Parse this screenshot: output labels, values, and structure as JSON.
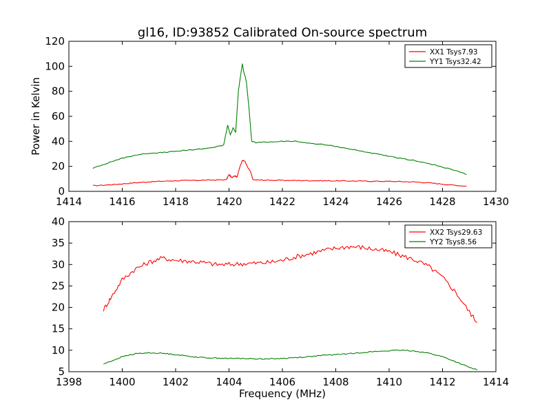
{
  "figure": {
    "title": "gl16, ID:93852 Calibrated On-source spectrum",
    "xlabel": "Frequency (MHz)"
  },
  "chart_data": [
    {
      "type": "line",
      "ylabel": "Power in Kelvin",
      "xlim": [
        1414,
        1430
      ],
      "ylim": [
        0,
        120
      ],
      "xticks": [
        "1414",
        "1416",
        "1418",
        "1420",
        "1422",
        "1424",
        "1426",
        "1428",
        "1430"
      ],
      "yticks": [
        "0",
        "20",
        "40",
        "60",
        "80",
        "100",
        "120"
      ],
      "grid": false,
      "legend_position": "top-right",
      "series": [
        {
          "name": "XX1 Tsys7.93",
          "color": "#ff0000",
          "x": [
            1414.9,
            1415.5,
            1416.0,
            1416.5,
            1417.0,
            1417.5,
            1418.0,
            1418.5,
            1419.0,
            1419.5,
            1419.9,
            1420.0,
            1420.1,
            1420.2,
            1420.3,
            1420.4,
            1420.5,
            1420.6,
            1420.7,
            1420.8,
            1420.9,
            1421.2,
            1421.6,
            1422.0,
            1422.5,
            1423.0,
            1423.5,
            1424.0,
            1424.5,
            1425.0,
            1425.5,
            1426.0,
            1426.5,
            1427.0,
            1427.5,
            1428.0,
            1428.5,
            1428.9
          ],
          "values": [
            4.5,
            5.2,
            6.0,
            6.9,
            7.6,
            8.1,
            8.5,
            8.7,
            8.9,
            9.1,
            9.3,
            13.5,
            11.0,
            12.5,
            11.5,
            19.0,
            25.0,
            24.0,
            19.0,
            16.0,
            9.2,
            9.0,
            8.9,
            8.8,
            8.7,
            8.6,
            8.5,
            8.4,
            8.3,
            8.2,
            8.1,
            8.0,
            7.8,
            7.5,
            6.8,
            5.8,
            4.8,
            4.2
          ]
        },
        {
          "name": "YY1 Tsys32.42",
          "color": "#008000",
          "x": [
            1414.9,
            1415.3,
            1415.7,
            1416.0,
            1416.5,
            1417.0,
            1417.5,
            1418.0,
            1418.5,
            1419.0,
            1419.5,
            1419.8,
            1419.95,
            1420.05,
            1420.15,
            1420.25,
            1420.35,
            1420.45,
            1420.5,
            1420.55,
            1420.65,
            1420.75,
            1420.85,
            1421.0,
            1421.5,
            1422.0,
            1422.5,
            1423.0,
            1423.5,
            1424.0,
            1424.5,
            1425.0,
            1425.5,
            1426.0,
            1426.5,
            1427.0,
            1427.5,
            1428.0,
            1428.5,
            1428.9
          ],
          "values": [
            18.5,
            21.5,
            24.5,
            26.5,
            29.0,
            30.5,
            31.0,
            32.0,
            33.0,
            34.0,
            35.5,
            37.0,
            53.0,
            45.0,
            51.0,
            47.0,
            80.0,
            95.0,
            102.0,
            96.0,
            88.0,
            66.0,
            40.0,
            39.0,
            39.5,
            40.0,
            40.0,
            38.5,
            37.5,
            36.0,
            34.0,
            32.0,
            30.0,
            28.0,
            26.0,
            24.5,
            22.0,
            19.5,
            16.5,
            13.5
          ]
        }
      ]
    },
    {
      "type": "line",
      "ylabel": "",
      "xlim": [
        1398,
        1414
      ],
      "ylim": [
        5,
        40
      ],
      "xticks": [
        "1398",
        "1400",
        "1402",
        "1404",
        "1406",
        "1408",
        "1410",
        "1412",
        "1414"
      ],
      "yticks": [
        "5",
        "10",
        "15",
        "20",
        "25",
        "30",
        "35",
        "40"
      ],
      "grid": false,
      "legend_position": "top-right",
      "series": [
        {
          "name": "XX2 Tsys29.63",
          "color": "#ff0000",
          "x": [
            1399.3,
            1399.6,
            1400.0,
            1400.5,
            1401.0,
            1401.5,
            1402.0,
            1402.5,
            1403.0,
            1403.5,
            1404.0,
            1404.5,
            1405.0,
            1405.5,
            1406.0,
            1406.5,
            1407.0,
            1407.5,
            1408.0,
            1408.5,
            1409.0,
            1409.5,
            1410.0,
            1410.5,
            1411.0,
            1411.5,
            1412.0,
            1412.5,
            1413.0,
            1413.3
          ],
          "values": [
            19.5,
            22.5,
            26.5,
            29.0,
            30.5,
            31.5,
            31.0,
            30.8,
            30.5,
            30.0,
            30.0,
            30.2,
            30.3,
            30.5,
            31.0,
            31.8,
            32.5,
            33.2,
            33.8,
            34.2,
            34.0,
            33.5,
            33.0,
            32.0,
            31.0,
            29.5,
            27.0,
            23.5,
            19.0,
            16.5
          ]
        },
        {
          "name": "YY2 Tsys8.56",
          "color": "#008000",
          "x": [
            1399.3,
            1399.6,
            1400.0,
            1400.5,
            1401.0,
            1401.5,
            1402.0,
            1402.5,
            1403.0,
            1403.5,
            1404.0,
            1404.5,
            1405.0,
            1405.5,
            1406.0,
            1406.5,
            1407.0,
            1407.5,
            1408.0,
            1408.5,
            1409.0,
            1409.5,
            1410.0,
            1410.5,
            1411.0,
            1411.5,
            1412.0,
            1412.5,
            1413.0,
            1413.3
          ],
          "values": [
            6.8,
            7.5,
            8.5,
            9.2,
            9.4,
            9.3,
            9.0,
            8.6,
            8.3,
            8.2,
            8.1,
            8.1,
            8.0,
            8.0,
            8.1,
            8.3,
            8.5,
            8.8,
            9.0,
            9.2,
            9.5,
            9.7,
            9.9,
            10.0,
            9.8,
            9.3,
            8.5,
            7.3,
            6.0,
            5.4
          ]
        }
      ]
    }
  ]
}
